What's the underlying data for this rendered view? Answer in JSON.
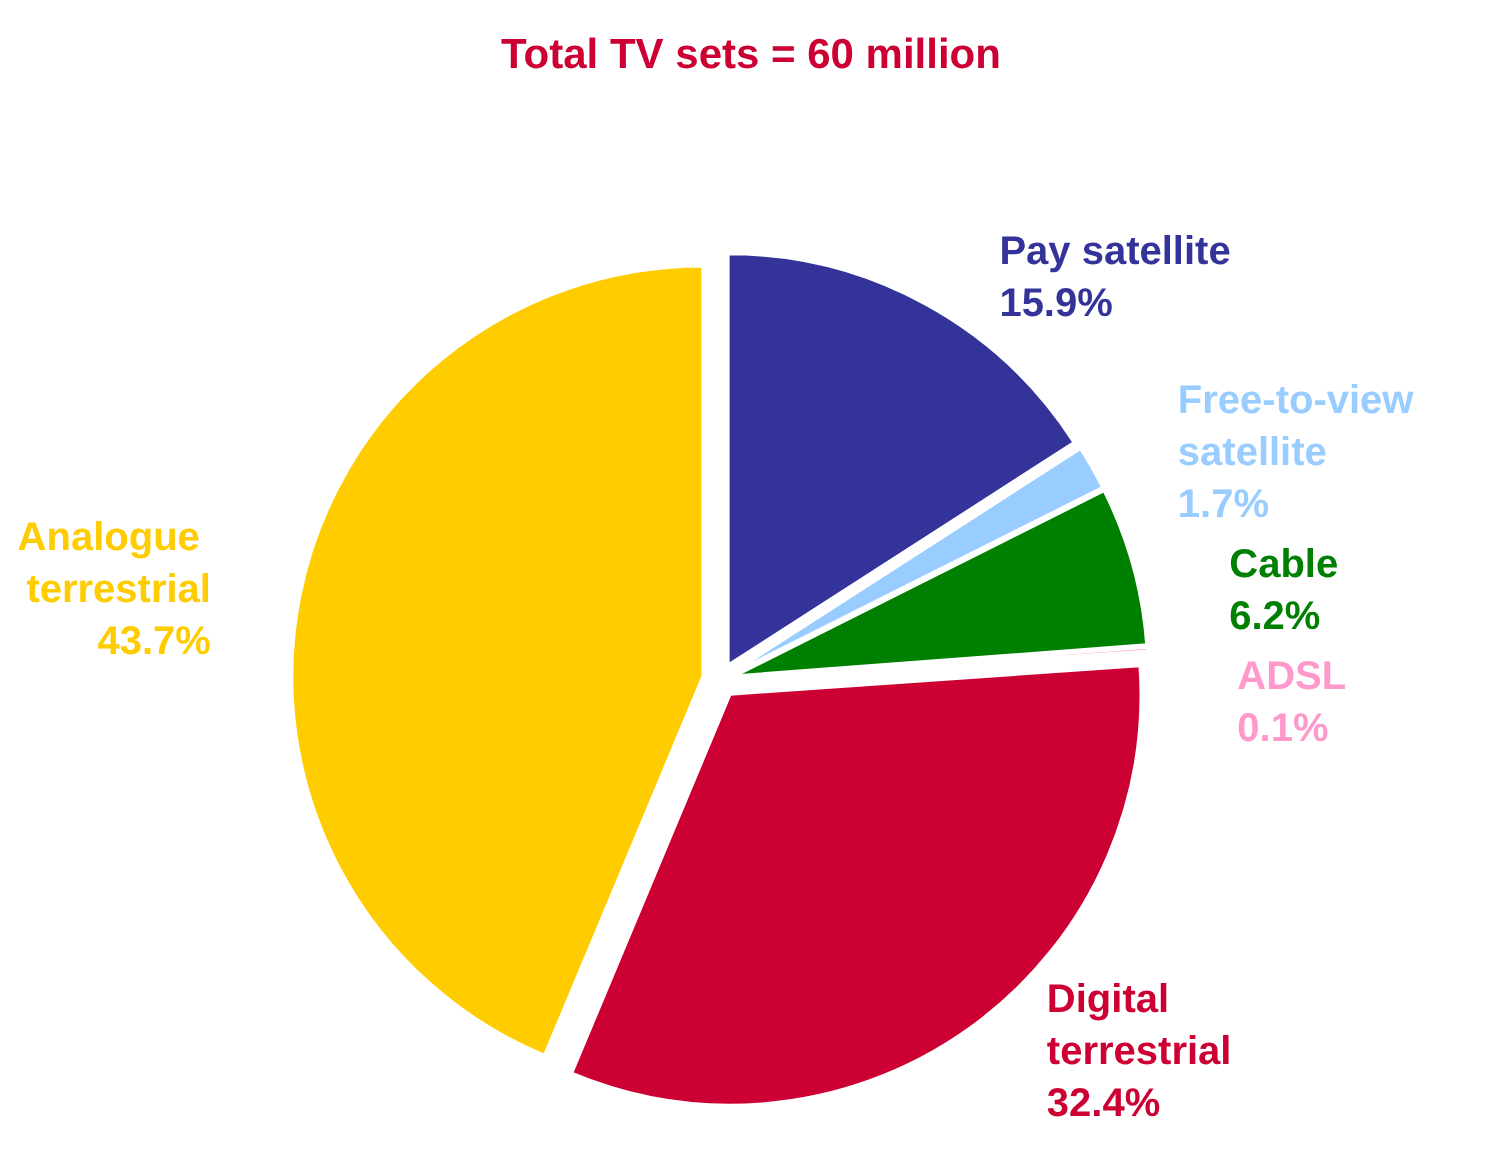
{
  "chart_data": {
    "type": "pie",
    "title": "Total TV sets = 60 million",
    "categories": [
      "Pay satellite",
      "Free-to-view satellite",
      "Cable",
      "ADSL",
      "Digital terrestrial",
      "Analogue terrestrial"
    ],
    "values": [
      15.9,
      1.7,
      6.2,
      0.1,
      32.4,
      43.7
    ],
    "colors": [
      "#333399",
      "#99ccff",
      "#008000",
      "#ff99cc",
      "#cc0033",
      "#ffcc00"
    ],
    "value_labels": [
      "15.9%",
      "1.7%",
      "6.2%",
      "0.1%",
      "32.4%",
      "43.7%"
    ]
  }
}
